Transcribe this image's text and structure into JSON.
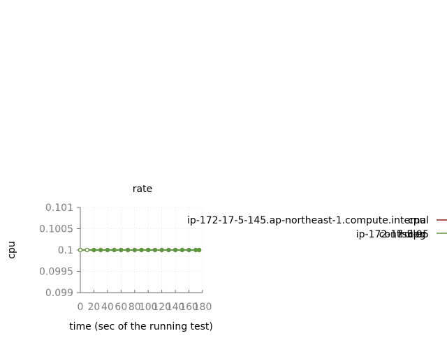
{
  "chart_data": {
    "type": "line",
    "title": "rate",
    "xlabel": "time (sec of the running test)",
    "ylabel": "cpu",
    "xlim": [
      0,
      180
    ],
    "ylim": [
      0.099,
      0.101
    ],
    "x_ticks": [
      0,
      20,
      40,
      60,
      80,
      100,
      120,
      140,
      160,
      180
    ],
    "x_tick_labels": [
      "0",
      "20",
      "40",
      "60",
      "80",
      "100",
      "120",
      "140",
      "160",
      "180"
    ],
    "y_ticks": [
      0.099,
      0.0995,
      0.1,
      0.1005,
      0.101
    ],
    "y_tick_labels": [
      "0.099",
      "0.0995",
      "0.1",
      "0.1005",
      "0.101"
    ],
    "grid": true,
    "legend_position": "right",
    "x": [
      0,
      10,
      20,
      30,
      40,
      50,
      60,
      70,
      80,
      90,
      100,
      110,
      120,
      130,
      140,
      150,
      160,
      170,
      175
    ],
    "series": [
      {
        "name": "cpu ip-172-17-5-145.ap-northeast-1.compute.internal",
        "label_parts": {
          "a": "cpu",
          "b": "ip-172-17-5-145.ap-northeast-1.compute.internal"
        },
        "color": "#8b1a1a",
        "values": [
          0.1,
          0.1,
          0.1,
          0.1,
          0.1,
          0.1,
          0.1,
          0.1,
          0.1,
          0.1,
          0.1,
          0.1,
          0.1,
          0.1,
          0.1,
          0.1,
          0.1,
          0.1,
          0.1
        ]
      },
      {
        "name": "cpu tsung_controller ip-172-17-5-95",
        "label_parts": {
          "a": "cpu",
          "b": "tsung",
          "c": "controller",
          "d": "ip-172-17-5-95"
        },
        "color": "#5a9a3a",
        "values": [
          0.1,
          0.1,
          0.1,
          0.1,
          0.1,
          0.1,
          0.1,
          0.1,
          0.1,
          0.1,
          0.1,
          0.1,
          0.1,
          0.1,
          0.1,
          0.1,
          0.1,
          0.1,
          0.1
        ]
      }
    ]
  }
}
